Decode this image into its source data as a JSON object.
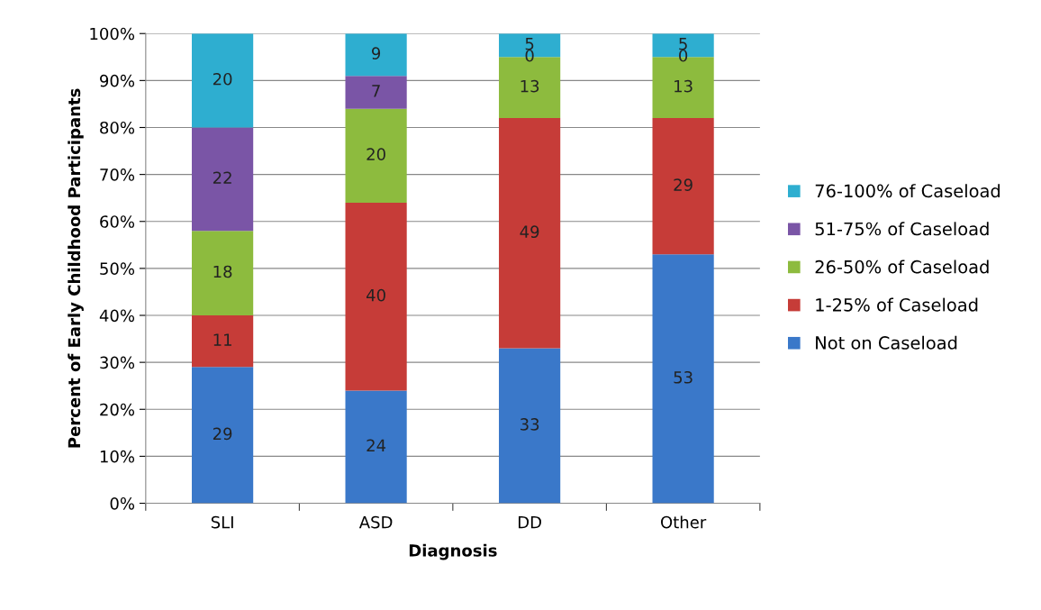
{
  "chart_data": {
    "type": "bar",
    "stacked": true,
    "xlabel": "Diagnosis",
    "ylabel": "Percent of Early Childhood Participants",
    "categories": [
      "SLI",
      "ASD",
      "DD",
      "Other"
    ],
    "series": [
      {
        "name": "Not on Caseload",
        "color": "#3a78c9",
        "values": [
          29,
          24,
          33,
          53
        ]
      },
      {
        "name": "1-25% of Caseload",
        "color": "#c63c38",
        "values": [
          11,
          40,
          49,
          29
        ]
      },
      {
        "name": "26-50% of Caseload",
        "color": "#8dbb3e",
        "values": [
          18,
          20,
          13,
          13
        ]
      },
      {
        "name": "51-75% of Caseload",
        "color": "#7a55a6",
        "values": [
          22,
          7,
          0,
          0
        ]
      },
      {
        "name": "76-100% of Caseload",
        "color": "#2eaed0",
        "values": [
          20,
          9,
          5,
          5
        ]
      }
    ],
    "ylim": [
      0,
      100
    ],
    "yticks": [
      {
        "value": 0,
        "label": "0%"
      },
      {
        "value": 10,
        "label": "10%"
      },
      {
        "value": 20,
        "label": "20%"
      },
      {
        "value": 30,
        "label": "30%"
      },
      {
        "value": 40,
        "label": "40%"
      },
      {
        "value": 50,
        "label": "50%"
      },
      {
        "value": 60,
        "label": "60%"
      },
      {
        "value": 70,
        "label": "70%"
      },
      {
        "value": 80,
        "label": "80%"
      },
      {
        "value": 90,
        "label": "90%"
      },
      {
        "value": 100,
        "label": "100%"
      }
    ],
    "grid": "y",
    "legend": "right",
    "data_labels": true
  }
}
